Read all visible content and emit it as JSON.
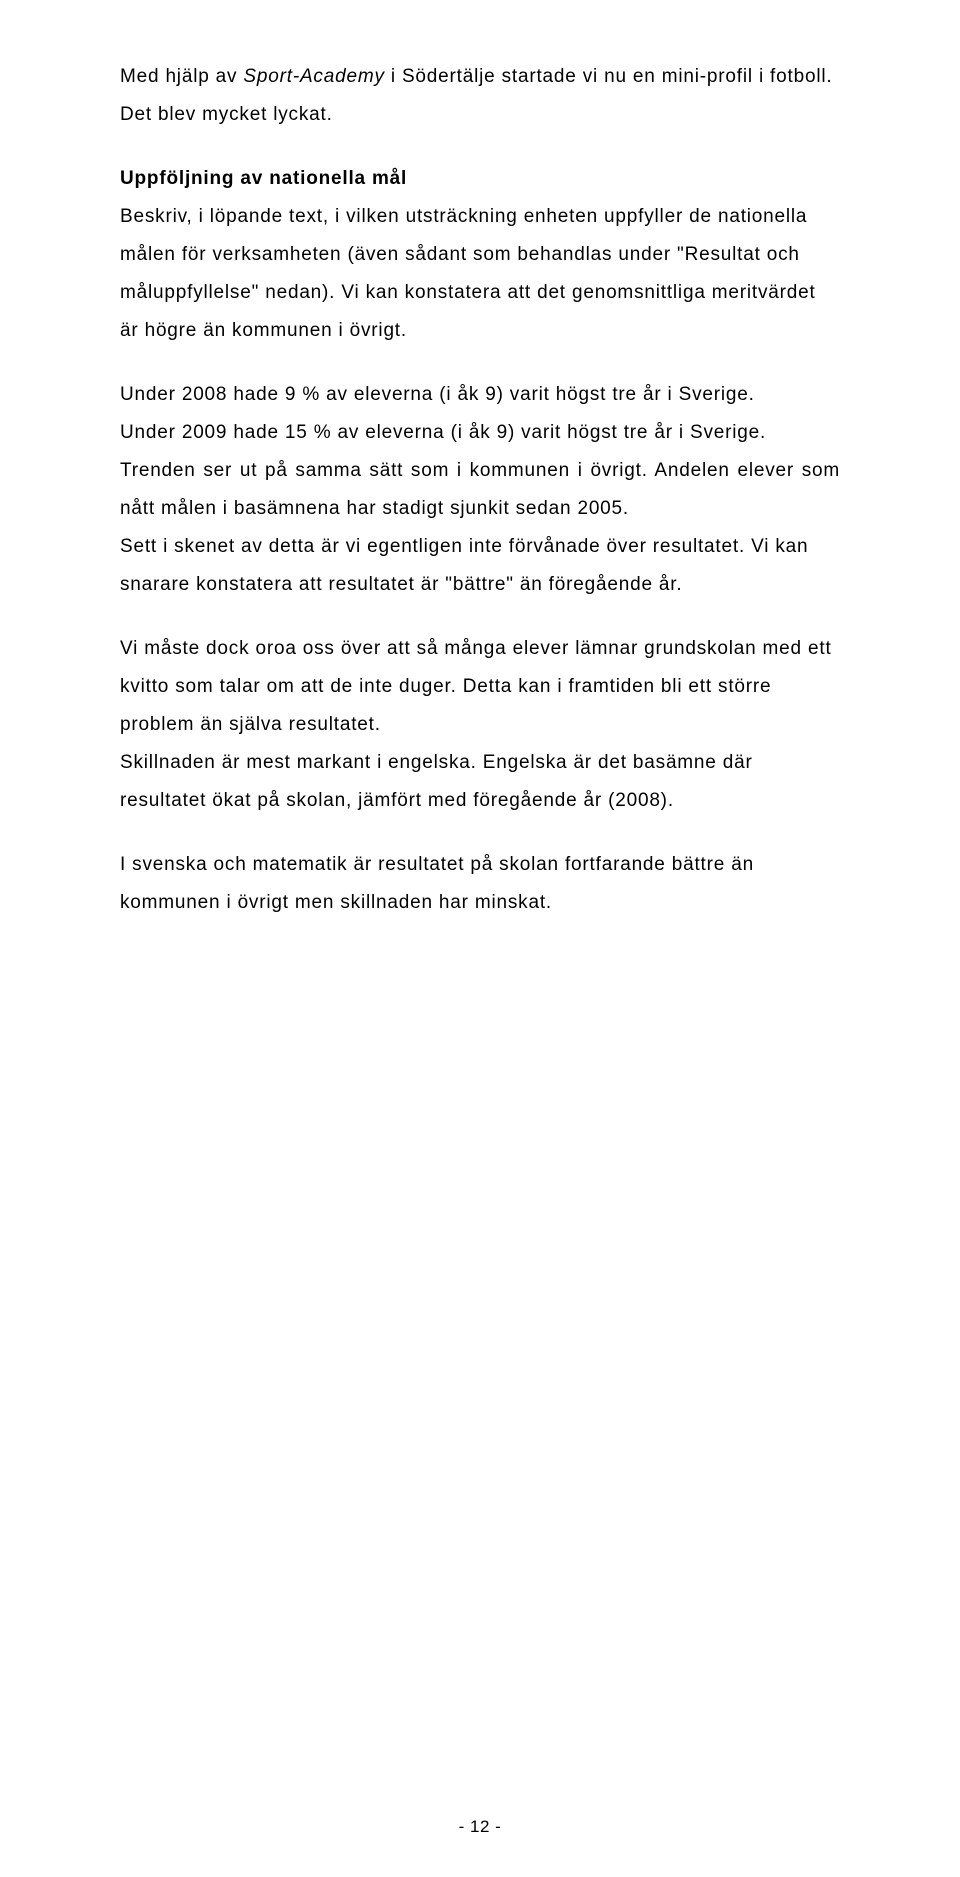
{
  "p1_a": "Med hjälp av ",
  "p1_b": "Sport-Academy",
  "p1_c": " i Södertälje startade vi nu en mini-profil i fotboll. Det blev mycket lyckat.",
  "h1": "Uppföljning av nationella mål",
  "p2": "Beskriv, i löpande text, i vilken utsträckning enheten uppfyller de nationella målen för verksamheten (även sådant som behandlas under \"Resultat och måluppfyllelse\" nedan). Vi kan konstatera att det genomsnittliga meritvärdet är högre än kommunen i övrigt.",
  "p3": " Under 2008 hade 9 % av eleverna (i åk 9) varit högst tre år i Sverige.",
  "p4": " Under 2009 hade 15 % av eleverna (i åk 9) varit högst tre år i Sverige.",
  "p5": "Trenden ser ut på samma sätt som i kommunen i övrigt. Andelen elever som nått målen i basämnena har stadigt sjunkit sedan 2005.",
  "p6": "Sett i skenet av detta är vi egentligen inte förvånade över resultatet. Vi kan snarare konstatera att resultatet är \"bättre\" än föregående år.",
  "p7": "Vi måste dock oroa oss över att så många elever lämnar grundskolan med ett kvitto som talar om att de inte duger. Detta kan i framtiden bli ett större problem än själva resultatet.",
  "p8": "Skillnaden är mest markant i engelska. Engelska är det basämne där resultatet ökat på skolan, jämfört med föregående år (2008).",
  "p9": "I svenska och matematik är resultatet på skolan fortfarande bättre än kommunen i övrigt men skillnaden har minskat.",
  "footer": "- 12 -"
}
